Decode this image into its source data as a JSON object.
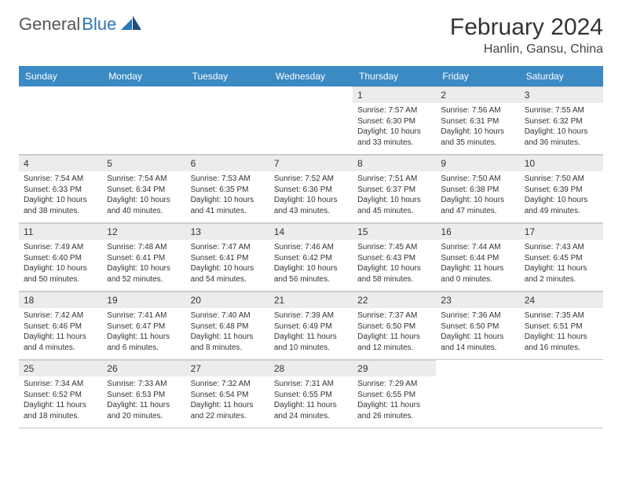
{
  "brand": {
    "part1": "General",
    "part2": "Blue"
  },
  "title": "February 2024",
  "location": "Hanlin, Gansu, China",
  "colors": {
    "header_bg": "#3b8ac4",
    "header_text": "#ffffff",
    "daynum_bg": "#ececec",
    "text": "#333333",
    "border": "#c8c8c8"
  },
  "day_names": [
    "Sunday",
    "Monday",
    "Tuesday",
    "Wednesday",
    "Thursday",
    "Friday",
    "Saturday"
  ],
  "weeks": [
    [
      {
        "n": "",
        "sr": "",
        "ss": "",
        "dl": ""
      },
      {
        "n": "",
        "sr": "",
        "ss": "",
        "dl": ""
      },
      {
        "n": "",
        "sr": "",
        "ss": "",
        "dl": ""
      },
      {
        "n": "",
        "sr": "",
        "ss": "",
        "dl": ""
      },
      {
        "n": "1",
        "sr": "Sunrise: 7:57 AM",
        "ss": "Sunset: 6:30 PM",
        "dl": "Daylight: 10 hours and 33 minutes."
      },
      {
        "n": "2",
        "sr": "Sunrise: 7:56 AM",
        "ss": "Sunset: 6:31 PM",
        "dl": "Daylight: 10 hours and 35 minutes."
      },
      {
        "n": "3",
        "sr": "Sunrise: 7:55 AM",
        "ss": "Sunset: 6:32 PM",
        "dl": "Daylight: 10 hours and 36 minutes."
      }
    ],
    [
      {
        "n": "4",
        "sr": "Sunrise: 7:54 AM",
        "ss": "Sunset: 6:33 PM",
        "dl": "Daylight: 10 hours and 38 minutes."
      },
      {
        "n": "5",
        "sr": "Sunrise: 7:54 AM",
        "ss": "Sunset: 6:34 PM",
        "dl": "Daylight: 10 hours and 40 minutes."
      },
      {
        "n": "6",
        "sr": "Sunrise: 7:53 AM",
        "ss": "Sunset: 6:35 PM",
        "dl": "Daylight: 10 hours and 41 minutes."
      },
      {
        "n": "7",
        "sr": "Sunrise: 7:52 AM",
        "ss": "Sunset: 6:36 PM",
        "dl": "Daylight: 10 hours and 43 minutes."
      },
      {
        "n": "8",
        "sr": "Sunrise: 7:51 AM",
        "ss": "Sunset: 6:37 PM",
        "dl": "Daylight: 10 hours and 45 minutes."
      },
      {
        "n": "9",
        "sr": "Sunrise: 7:50 AM",
        "ss": "Sunset: 6:38 PM",
        "dl": "Daylight: 10 hours and 47 minutes."
      },
      {
        "n": "10",
        "sr": "Sunrise: 7:50 AM",
        "ss": "Sunset: 6:39 PM",
        "dl": "Daylight: 10 hours and 49 minutes."
      }
    ],
    [
      {
        "n": "11",
        "sr": "Sunrise: 7:49 AM",
        "ss": "Sunset: 6:40 PM",
        "dl": "Daylight: 10 hours and 50 minutes."
      },
      {
        "n": "12",
        "sr": "Sunrise: 7:48 AM",
        "ss": "Sunset: 6:41 PM",
        "dl": "Daylight: 10 hours and 52 minutes."
      },
      {
        "n": "13",
        "sr": "Sunrise: 7:47 AM",
        "ss": "Sunset: 6:41 PM",
        "dl": "Daylight: 10 hours and 54 minutes."
      },
      {
        "n": "14",
        "sr": "Sunrise: 7:46 AM",
        "ss": "Sunset: 6:42 PM",
        "dl": "Daylight: 10 hours and 56 minutes."
      },
      {
        "n": "15",
        "sr": "Sunrise: 7:45 AM",
        "ss": "Sunset: 6:43 PM",
        "dl": "Daylight: 10 hours and 58 minutes."
      },
      {
        "n": "16",
        "sr": "Sunrise: 7:44 AM",
        "ss": "Sunset: 6:44 PM",
        "dl": "Daylight: 11 hours and 0 minutes."
      },
      {
        "n": "17",
        "sr": "Sunrise: 7:43 AM",
        "ss": "Sunset: 6:45 PM",
        "dl": "Daylight: 11 hours and 2 minutes."
      }
    ],
    [
      {
        "n": "18",
        "sr": "Sunrise: 7:42 AM",
        "ss": "Sunset: 6:46 PM",
        "dl": "Daylight: 11 hours and 4 minutes."
      },
      {
        "n": "19",
        "sr": "Sunrise: 7:41 AM",
        "ss": "Sunset: 6:47 PM",
        "dl": "Daylight: 11 hours and 6 minutes."
      },
      {
        "n": "20",
        "sr": "Sunrise: 7:40 AM",
        "ss": "Sunset: 6:48 PM",
        "dl": "Daylight: 11 hours and 8 minutes."
      },
      {
        "n": "21",
        "sr": "Sunrise: 7:39 AM",
        "ss": "Sunset: 6:49 PM",
        "dl": "Daylight: 11 hours and 10 minutes."
      },
      {
        "n": "22",
        "sr": "Sunrise: 7:37 AM",
        "ss": "Sunset: 6:50 PM",
        "dl": "Daylight: 11 hours and 12 minutes."
      },
      {
        "n": "23",
        "sr": "Sunrise: 7:36 AM",
        "ss": "Sunset: 6:50 PM",
        "dl": "Daylight: 11 hours and 14 minutes."
      },
      {
        "n": "24",
        "sr": "Sunrise: 7:35 AM",
        "ss": "Sunset: 6:51 PM",
        "dl": "Daylight: 11 hours and 16 minutes."
      }
    ],
    [
      {
        "n": "25",
        "sr": "Sunrise: 7:34 AM",
        "ss": "Sunset: 6:52 PM",
        "dl": "Daylight: 11 hours and 18 minutes."
      },
      {
        "n": "26",
        "sr": "Sunrise: 7:33 AM",
        "ss": "Sunset: 6:53 PM",
        "dl": "Daylight: 11 hours and 20 minutes."
      },
      {
        "n": "27",
        "sr": "Sunrise: 7:32 AM",
        "ss": "Sunset: 6:54 PM",
        "dl": "Daylight: 11 hours and 22 minutes."
      },
      {
        "n": "28",
        "sr": "Sunrise: 7:31 AM",
        "ss": "Sunset: 6:55 PM",
        "dl": "Daylight: 11 hours and 24 minutes."
      },
      {
        "n": "29",
        "sr": "Sunrise: 7:29 AM",
        "ss": "Sunset: 6:55 PM",
        "dl": "Daylight: 11 hours and 26 minutes."
      },
      {
        "n": "",
        "sr": "",
        "ss": "",
        "dl": ""
      },
      {
        "n": "",
        "sr": "",
        "ss": "",
        "dl": ""
      }
    ]
  ]
}
